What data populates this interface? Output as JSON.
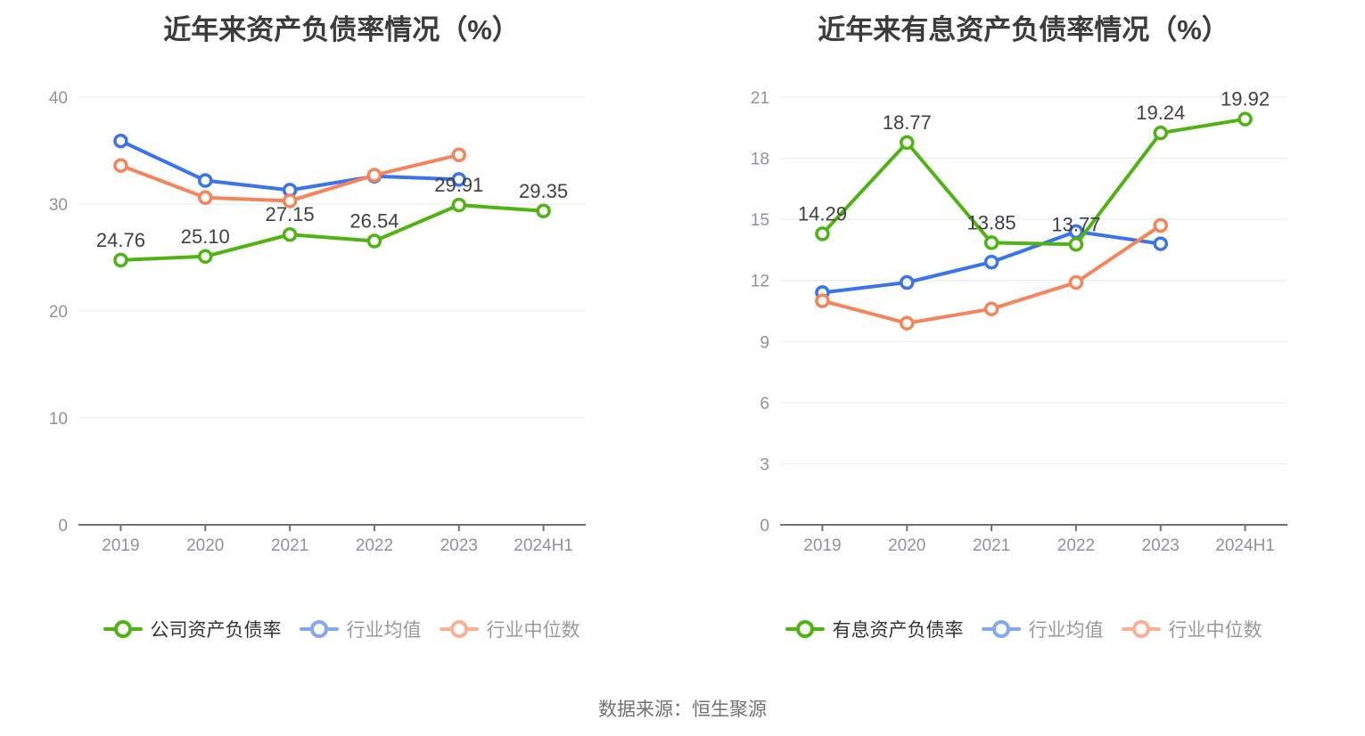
{
  "source": "数据来源：恒生聚源",
  "chart_data": [
    {
      "type": "line",
      "title": "近年来资产负债率情况（%）",
      "categories": [
        "2019",
        "2020",
        "2021",
        "2022",
        "2023",
        "2024H1"
      ],
      "y_axis": {
        "min": 0,
        "max": 40,
        "step": 10,
        "tick_labels": [
          "0",
          "10",
          "20",
          "30",
          "40"
        ]
      },
      "grid": true,
      "legend_position": "bottom",
      "series": [
        {
          "name": "公司资产负债率",
          "color": "#50b314",
          "legend_color": "#50b314",
          "values": [
            24.76,
            25.1,
            27.15,
            26.54,
            29.91,
            29.35
          ],
          "point_labels": [
            "24.76",
            "25.10",
            "27.15",
            "26.54",
            "29.91",
            "29.35"
          ]
        },
        {
          "name": "行业均值",
          "color": "#3b74ea",
          "legend_color": "#85a7f2",
          "values": [
            35.9,
            32.2,
            31.3,
            32.6,
            32.3
          ]
        },
        {
          "name": "行业中位数",
          "color": "#f6845a",
          "legend_color": "#f8b193",
          "values": [
            33.6,
            30.6,
            30.3,
            32.7,
            34.6
          ]
        }
      ]
    },
    {
      "type": "line",
      "title": "近年来有息资产负债率情况（%）",
      "categories": [
        "2019",
        "2020",
        "2021",
        "2022",
        "2023",
        "2024H1"
      ],
      "y_axis": {
        "min": 0,
        "max": 21,
        "step": 3,
        "tick_labels": [
          "0",
          "3",
          "6",
          "9",
          "12",
          "15",
          "18",
          "21"
        ]
      },
      "grid": true,
      "legend_position": "bottom",
      "series": [
        {
          "name": "有息资产负债率",
          "color": "#50b314",
          "legend_color": "#50b314",
          "values": [
            14.29,
            18.77,
            13.85,
            13.77,
            19.24,
            19.92
          ],
          "point_labels": [
            "14.29",
            "18.77",
            "13.85",
            "13.77",
            "19.24",
            "19.92"
          ]
        },
        {
          "name": "行业均值",
          "color": "#3b74ea",
          "legend_color": "#85a7f2",
          "values": [
            11.4,
            11.9,
            12.9,
            14.4,
            13.8
          ]
        },
        {
          "name": "行业中位数",
          "color": "#f6845a",
          "legend_color": "#f8b193",
          "values": [
            11.0,
            9.9,
            10.6,
            11.9,
            14.7
          ]
        }
      ]
    }
  ]
}
